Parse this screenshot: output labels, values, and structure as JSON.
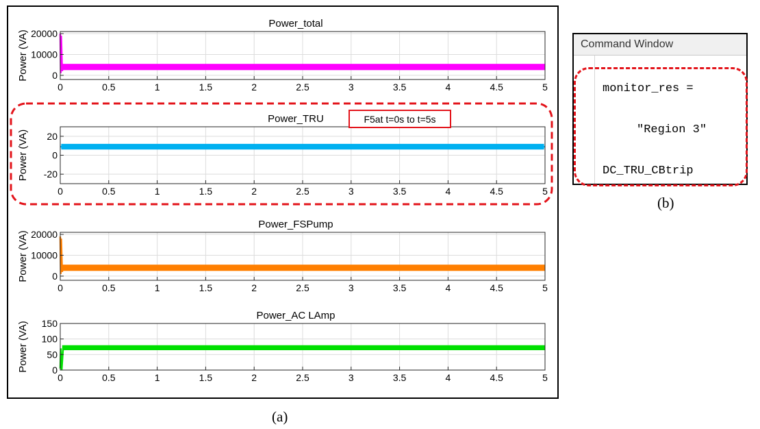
{
  "figure": {
    "label_a": "(a)",
    "label_b": "(b)"
  },
  "annotation": {
    "text": "F5at t=0s to t=5s",
    "color": "#e3141b"
  },
  "command_window": {
    "title": "Command Window",
    "lines": [
      "monitor_res =",
      "\"Region 3\"",
      "DC_TRU_CBtrip"
    ]
  },
  "chart_data": [
    {
      "type": "line",
      "title": "Power_total",
      "ylabel": "Power (VA)",
      "xlim": [
        0,
        5
      ],
      "ylim": [
        -2000,
        21000
      ],
      "yticks": [
        0,
        10000,
        20000
      ],
      "xticks": [
        0,
        0.5,
        1,
        1.5,
        2,
        2.5,
        3,
        3.5,
        4,
        4.5,
        5
      ],
      "grid": true,
      "series": [
        {
          "color": "#ff00ff",
          "x": [
            0,
            0.005,
            0.01,
            0.02,
            0.03,
            0.05,
            5
          ],
          "y": [
            20000,
            1000,
            19000,
            2000,
            4500,
            4000,
            4000
          ],
          "band": 1500
        }
      ]
    },
    {
      "type": "line",
      "title": "Power_TRU",
      "ylabel": "Power (VA)",
      "xlim": [
        0,
        5
      ],
      "ylim": [
        -30,
        30
      ],
      "yticks": [
        -20,
        0,
        20
      ],
      "xticks": [
        0,
        0.5,
        1,
        1.5,
        2,
        2.5,
        3,
        3.5,
        4,
        4.5,
        5
      ],
      "grid": true,
      "series": [
        {
          "color": "#00b0f0",
          "x": [
            0,
            5
          ],
          "y": [
            9,
            9
          ],
          "band": 3
        }
      ]
    },
    {
      "type": "line",
      "title": "Power_FSPump",
      "ylabel": "Power (VA)",
      "xlim": [
        0,
        5
      ],
      "ylim": [
        -2000,
        21000
      ],
      "yticks": [
        0,
        10000,
        20000
      ],
      "xticks": [
        0,
        0.5,
        1,
        1.5,
        2,
        2.5,
        3,
        3.5,
        4,
        4.5,
        5
      ],
      "grid": true,
      "series": [
        {
          "color": "#ff7f00",
          "x": [
            0,
            0.005,
            0.01,
            0.02,
            0.03,
            0.05,
            5
          ],
          "y": [
            19000,
            1000,
            18000,
            2000,
            4500,
            4000,
            4000
          ],
          "band": 1500
        }
      ]
    },
    {
      "type": "line",
      "title": "Power_AC LAmp",
      "ylabel": "Power (VA)",
      "xlim": [
        0,
        5
      ],
      "ylim": [
        0,
        150
      ],
      "yticks": [
        0,
        50,
        100,
        150
      ],
      "xticks": [
        0,
        0.5,
        1,
        1.5,
        2,
        2.5,
        3,
        3.5,
        4,
        4.5,
        5
      ],
      "grid": true,
      "series": [
        {
          "color": "#00e000",
          "x": [
            0,
            0.005,
            0.015,
            0.03,
            5
          ],
          "y": [
            5,
            70,
            0,
            72,
            72
          ],
          "band": 8
        }
      ]
    }
  ]
}
